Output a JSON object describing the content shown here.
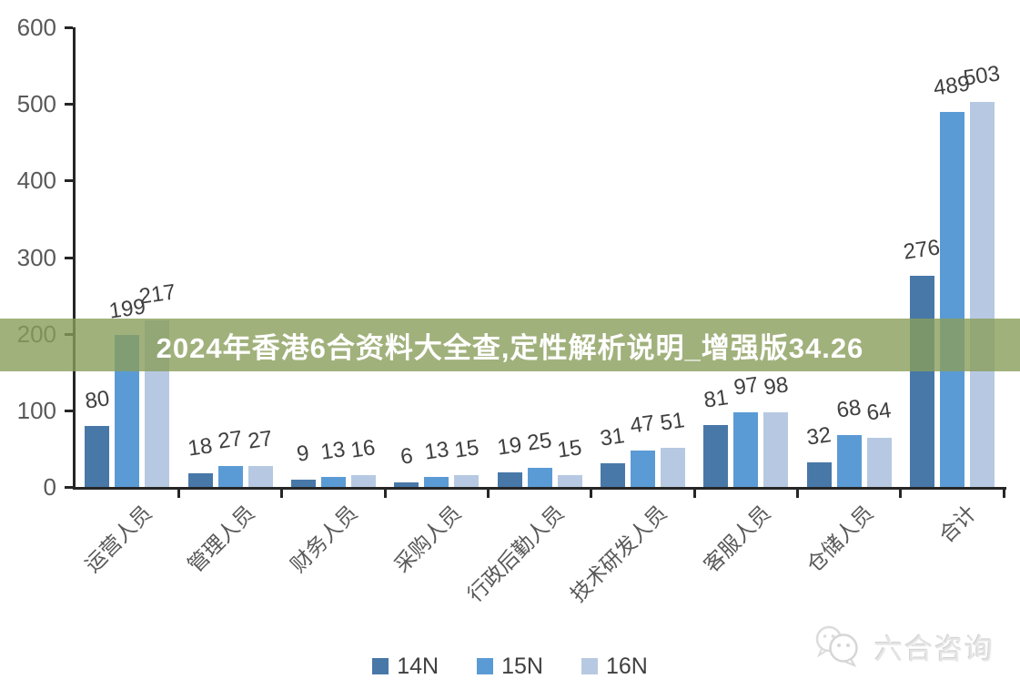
{
  "banner": {
    "text": "2024年香港6合资料大全查,定性解析说明_增强版34.26",
    "bg_color": "rgba(137,158,91,0.8)",
    "text_color": "#ffffff"
  },
  "watermark": {
    "label": "六合咨询",
    "icon": "wechat-chat-bubbles-icon",
    "color": "#e0e0e0"
  },
  "axis_style": {
    "line_color": "#262626",
    "tick_label_color": "#595959",
    "value_label_color": "#3f3f3f"
  },
  "chart_data": {
    "type": "bar",
    "title": "",
    "xlabel": "",
    "ylabel": "",
    "categories": [
      "运营人员",
      "管理人员",
      "财务人员",
      "采购人员",
      "行政后勤人员",
      "技术研发人员",
      "客服人员",
      "仓储人员",
      "合计"
    ],
    "series": [
      {
        "name": "14N",
        "color": "#4878a8",
        "values": [
          80,
          18,
          9,
          6,
          19,
          31,
          81,
          32,
          276
        ]
      },
      {
        "name": "15N",
        "color": "#5b9bd5",
        "values": [
          199,
          27,
          13,
          13,
          25,
          47,
          97,
          68,
          489
        ]
      },
      {
        "name": "16N",
        "color": "#b7c9e2",
        "values": [
          217,
          27,
          16,
          15,
          15,
          51,
          98,
          64,
          503
        ]
      }
    ],
    "ylim": [
      0,
      600
    ],
    "yticks": [
      0,
      100,
      200,
      300,
      400,
      500,
      600
    ],
    "grid": false,
    "legend_position": "bottom",
    "value_labels": true,
    "category_label_rotation_deg": -45,
    "value_label_rotation_deg": -8
  }
}
